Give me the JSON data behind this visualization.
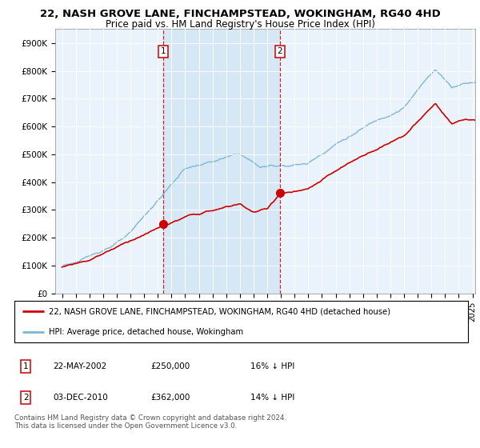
{
  "title": "22, NASH GROVE LANE, FINCHAMPSTEAD, WOKINGHAM, RG40 4HD",
  "subtitle": "Price paid vs. HM Land Registry's House Price Index (HPI)",
  "ylabel_ticks": [
    "£0",
    "£100K",
    "£200K",
    "£300K",
    "£400K",
    "£500K",
    "£600K",
    "£700K",
    "£800K",
    "£900K"
  ],
  "ytick_values": [
    0,
    100000,
    200000,
    300000,
    400000,
    500000,
    600000,
    700000,
    800000,
    900000
  ],
  "ylim": [
    0,
    950000
  ],
  "xlim_start": 1994.5,
  "xlim_end": 2025.2,
  "hpi_color": "#7EB6D9",
  "price_color": "#CC0000",
  "vline_color": "#CC0000",
  "shade_color": "#D6E8F5",
  "marker1_date": 2002.38,
  "marker1_price": 250000,
  "marker2_date": 2010.92,
  "marker2_price": 362000,
  "legend_line1": "22, NASH GROVE LANE, FINCHAMPSTEAD, WOKINGHAM, RG40 4HD (detached house)",
  "legend_line2": "HPI: Average price, detached house, Wokingham",
  "table_row1": [
    "1",
    "22-MAY-2002",
    "£250,000",
    "16% ↓ HPI"
  ],
  "table_row2": [
    "2",
    "03-DEC-2010",
    "£362,000",
    "14% ↓ HPI"
  ],
  "footer": "Contains HM Land Registry data © Crown copyright and database right 2024.\nThis data is licensed under the Open Government Licence v3.0.",
  "bg_color": "#ffffff",
  "plot_bg_color": "#EAF3FB"
}
